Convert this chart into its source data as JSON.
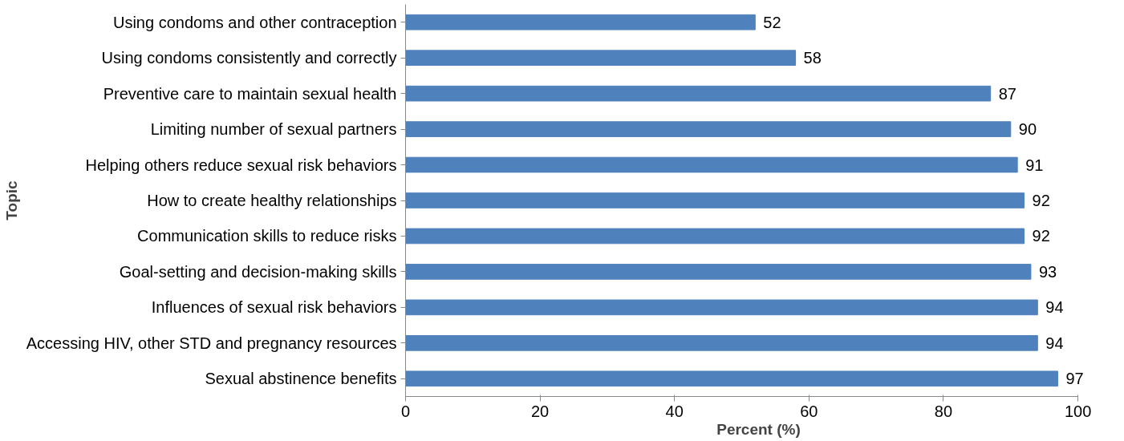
{
  "chart_data": {
    "type": "bar",
    "orientation": "horizontal",
    "categories": [
      "Using condoms and other contraception",
      "Using condoms consistently and correctly",
      "Preventive care to maintain sexual health",
      "Limiting number of sexual partners",
      "Helping others reduce sexual risk behaviors",
      "How to create healthy relationships",
      "Communication skills to reduce risks",
      "Goal-setting and decision-making skills",
      "Influences of sexual risk behaviors",
      "Accessing HIV, other STD and pregnancy resources",
      "Sexual abstinence benefits"
    ],
    "values": [
      52,
      58,
      87,
      90,
      91,
      92,
      92,
      93,
      94,
      94,
      97
    ],
    "color": "#4f81bd",
    "xlim": [
      0,
      100
    ],
    "xticks": [
      0,
      20,
      40,
      60,
      80,
      100
    ],
    "xlabel": "Percent (%)",
    "ylabel": "Topic",
    "data_labels": true,
    "grid": false
  }
}
